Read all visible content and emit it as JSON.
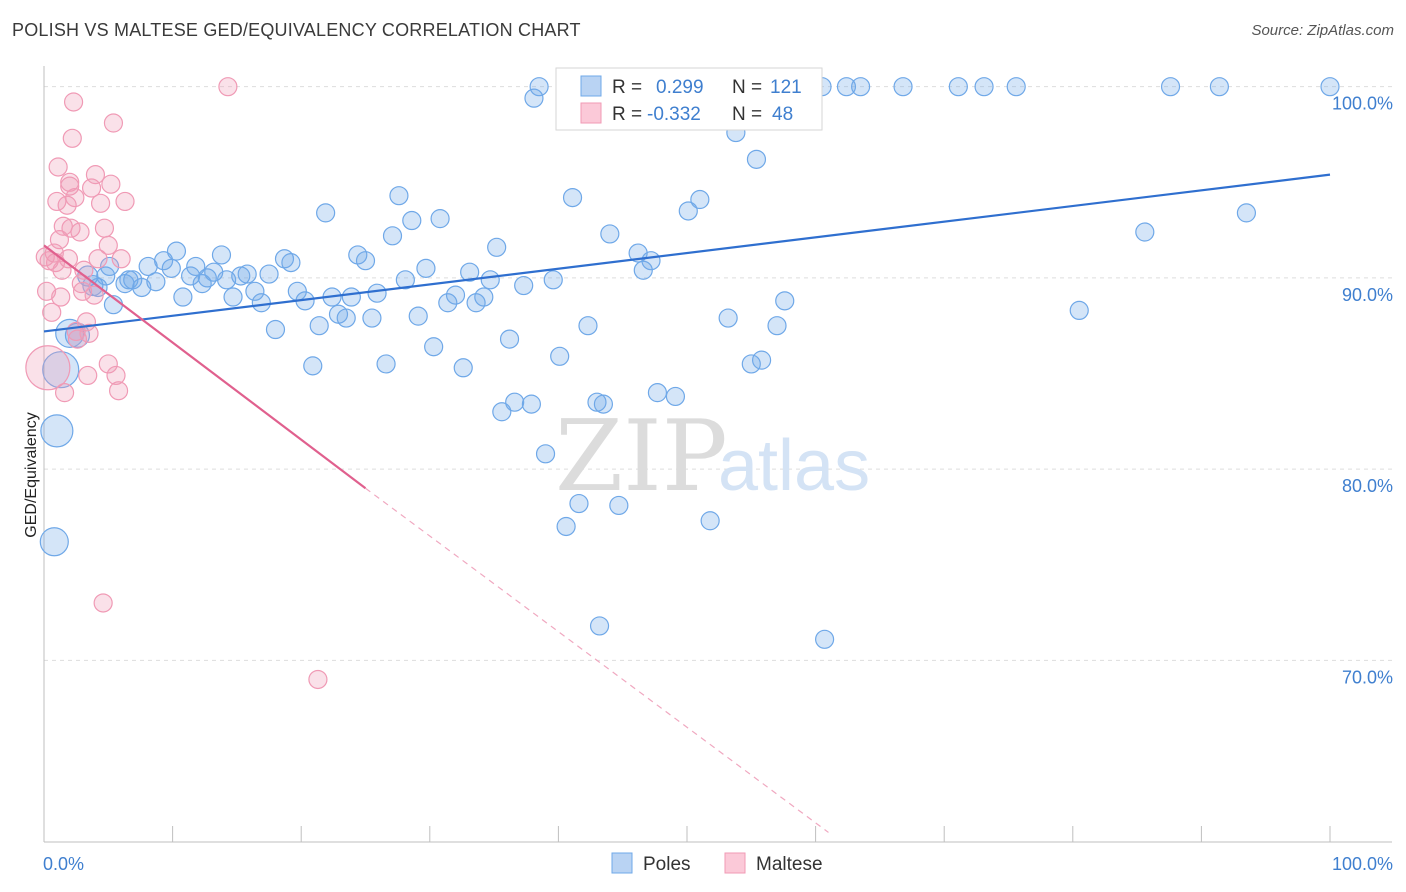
{
  "title": "POLISH VS MALTESE GED/EQUIVALENCY CORRELATION CHART",
  "source": "Source: ZipAtlas.com",
  "watermark": {
    "zip": "ZIP",
    "atlas": "atlas"
  },
  "colors": {
    "poles": "#6fa8e8",
    "poles_line": "#2f6fcf",
    "maltese": "#f09ab5",
    "maltese_line": "#e0608e",
    "tick": "#3f7fcf"
  },
  "chart_data": {
    "type": "scatter",
    "title": "POLISH VS MALTESE GED/EQUIVALENCY CORRELATION CHART",
    "xlabel": "",
    "ylabel": "GED/Equivalency",
    "xlim": [
      0,
      100
    ],
    "ylim": [
      60.5,
      101.5
    ],
    "x_tick_labels": [
      "0.0%",
      "100.0%"
    ],
    "y_ticks": [
      100,
      90,
      80,
      70
    ],
    "y_tick_labels": [
      "100.0%",
      "90.0%",
      "80.0%",
      "70.0%"
    ],
    "grid": true,
    "legend_position": "top-center",
    "stats": [
      {
        "r_label": "R =",
        "r": "0.299",
        "n_label": "N =",
        "n": "121"
      },
      {
        "r_label": "R =",
        "r": "-0.332",
        "n_label": "N =",
        "n": "48"
      }
    ],
    "series": [
      {
        "name": "Poles",
        "trend": {
          "x": [
            0,
            100
          ],
          "y": [
            87.2,
            95.4
          ],
          "dashed": false
        },
        "points": [
          [
            0.8,
            76.2,
            14
          ],
          [
            1.0,
            82.0,
            16
          ],
          [
            1.3,
            85.2,
            18
          ],
          [
            2.0,
            87.1,
            14
          ],
          [
            2.6,
            87.0,
            12
          ],
          [
            3.4,
            90.1,
            10
          ],
          [
            3.8,
            89.6,
            10
          ],
          [
            4.2,
            89.5,
            9
          ],
          [
            4.8,
            90.1,
            9
          ],
          [
            5.1,
            90.6,
            9
          ],
          [
            5.4,
            88.6,
            9
          ],
          [
            6.3,
            89.7,
            9
          ],
          [
            6.6,
            89.9,
            9
          ],
          [
            6.9,
            89.9,
            9
          ],
          [
            7.6,
            89.5,
            9
          ],
          [
            8.1,
            90.6,
            9
          ],
          [
            8.7,
            89.8,
            9
          ],
          [
            9.3,
            90.9,
            9
          ],
          [
            9.9,
            90.5,
            9
          ],
          [
            10.3,
            91.4,
            9
          ],
          [
            10.8,
            89.0,
            9
          ],
          [
            11.4,
            90.1,
            9
          ],
          [
            11.8,
            90.6,
            9
          ],
          [
            12.3,
            89.7,
            9
          ],
          [
            12.7,
            90.0,
            9
          ],
          [
            13.2,
            90.3,
            9
          ],
          [
            13.8,
            91.2,
            9
          ],
          [
            14.2,
            89.9,
            9
          ],
          [
            14.7,
            89.0,
            9
          ],
          [
            15.3,
            90.1,
            9
          ],
          [
            15.8,
            90.2,
            9
          ],
          [
            16.4,
            89.3,
            9
          ],
          [
            16.9,
            88.7,
            9
          ],
          [
            17.5,
            90.2,
            9
          ],
          [
            18.0,
            87.3,
            9
          ],
          [
            18.7,
            91.0,
            9
          ],
          [
            19.2,
            90.8,
            9
          ],
          [
            19.7,
            89.3,
            9
          ],
          [
            20.3,
            88.8,
            9
          ],
          [
            20.9,
            85.4,
            9
          ],
          [
            21.4,
            87.5,
            9
          ],
          [
            21.9,
            93.4,
            9
          ],
          [
            22.4,
            89.0,
            9
          ],
          [
            22.9,
            88.1,
            9
          ],
          [
            23.5,
            87.9,
            9
          ],
          [
            23.9,
            89.0,
            9
          ],
          [
            24.4,
            91.2,
            9
          ],
          [
            25.0,
            90.9,
            9
          ],
          [
            25.5,
            87.9,
            9
          ],
          [
            25.9,
            89.2,
            9
          ],
          [
            26.6,
            85.5,
            9
          ],
          [
            27.1,
            92.2,
            9
          ],
          [
            27.6,
            94.3,
            9
          ],
          [
            28.1,
            89.9,
            9
          ],
          [
            28.6,
            93.0,
            9
          ],
          [
            29.1,
            88.0,
            9
          ],
          [
            29.7,
            90.5,
            9
          ],
          [
            30.3,
            86.4,
            9
          ],
          [
            30.8,
            93.1,
            9
          ],
          [
            31.4,
            88.7,
            9
          ],
          [
            32.0,
            89.1,
            9
          ],
          [
            32.6,
            85.3,
            9
          ],
          [
            33.1,
            90.3,
            9
          ],
          [
            33.6,
            88.7,
            9
          ],
          [
            34.2,
            89.0,
            9
          ],
          [
            34.7,
            89.9,
            9
          ],
          [
            35.2,
            91.6,
            9
          ],
          [
            35.6,
            83.0,
            9
          ],
          [
            36.2,
            86.8,
            9
          ],
          [
            36.6,
            83.5,
            9
          ],
          [
            37.3,
            89.6,
            9
          ],
          [
            37.9,
            83.4,
            9
          ],
          [
            38.5,
            100.0,
            9
          ],
          [
            39.0,
            80.8,
            9
          ],
          [
            39.6,
            89.9,
            9
          ],
          [
            40.1,
            85.9,
            9
          ],
          [
            40.6,
            77.0,
            9
          ],
          [
            41.1,
            94.2,
            9
          ],
          [
            41.6,
            78.2,
            9
          ],
          [
            42.3,
            87.5,
            9
          ],
          [
            43.0,
            83.5,
            9
          ],
          [
            43.5,
            83.4,
            9
          ],
          [
            44.0,
            92.3,
            9
          ],
          [
            44.7,
            78.1,
            9
          ],
          [
            45.5,
            100.0,
            9
          ],
          [
            46.2,
            91.3,
            9
          ],
          [
            46.6,
            90.4,
            9
          ],
          [
            47.2,
            90.9,
            9
          ],
          [
            47.7,
            84.0,
            9
          ],
          [
            48.4,
            100.0,
            9
          ],
          [
            49.1,
            83.8,
            9
          ],
          [
            50.1,
            93.5,
            9
          ],
          [
            51.0,
            94.1,
            9
          ],
          [
            51.8,
            77.3,
            9
          ],
          [
            53.2,
            87.9,
            9
          ],
          [
            53.8,
            97.6,
            9
          ],
          [
            55.0,
            85.5,
            9
          ],
          [
            55.8,
            85.7,
            9
          ],
          [
            56.5,
            100.0,
            9
          ],
          [
            57.0,
            87.5,
            9
          ],
          [
            58.2,
            100.0,
            9
          ],
          [
            58.8,
            100.0,
            9
          ],
          [
            60.5,
            100.0,
            9
          ],
          [
            62.4,
            100.0,
            9
          ],
          [
            63.5,
            100.0,
            9
          ],
          [
            66.8,
            100.0,
            9
          ],
          [
            71.1,
            100.0,
            9
          ],
          [
            73.1,
            100.0,
            9
          ],
          [
            75.6,
            100.0,
            9
          ],
          [
            80.5,
            88.3,
            9
          ],
          [
            85.6,
            92.4,
            9
          ],
          [
            87.6,
            100.0,
            9
          ],
          [
            91.4,
            100.0,
            9
          ],
          [
            93.5,
            93.4,
            9
          ],
          [
            100.0,
            100.0,
            9
          ],
          [
            43.2,
            71.8,
            9
          ],
          [
            60.7,
            71.1,
            9
          ],
          [
            49.6,
            98.8,
            9
          ],
          [
            57.6,
            88.8,
            9
          ],
          [
            38.1,
            99.4,
            9
          ],
          [
            55.4,
            96.2,
            9
          ]
        ]
      },
      {
        "name": "Maltese",
        "trend": {
          "x": [
            0,
            25
          ],
          "y": [
            91.7,
            79.0
          ],
          "dashed": false,
          "extension": {
            "x": [
              25,
              61
            ],
            "y": [
              79.0,
              61.0
            ],
            "dashed": true
          }
        },
        "points": [
          [
            0.1,
            91.1,
            9
          ],
          [
            0.2,
            89.3,
            9
          ],
          [
            0.3,
            85.3,
            22
          ],
          [
            0.4,
            90.9,
            9
          ],
          [
            0.6,
            88.2,
            9
          ],
          [
            0.8,
            91.3,
            9
          ],
          [
            0.9,
            90.8,
            9
          ],
          [
            1.0,
            94.0,
            9
          ],
          [
            1.1,
            95.8,
            9
          ],
          [
            1.2,
            92.0,
            9
          ],
          [
            1.3,
            89.0,
            9
          ],
          [
            1.5,
            92.7,
            9
          ],
          [
            1.6,
            84.0,
            9
          ],
          [
            1.8,
            93.8,
            9
          ],
          [
            1.9,
            91.0,
            9
          ],
          [
            2.0,
            94.8,
            9
          ],
          [
            2.1,
            92.6,
            9
          ],
          [
            2.2,
            97.3,
            9
          ],
          [
            2.3,
            99.2,
            9
          ],
          [
            2.4,
            94.2,
            9
          ],
          [
            2.5,
            87.2,
            9
          ],
          [
            2.6,
            86.8,
            9
          ],
          [
            2.8,
            92.4,
            9
          ],
          [
            2.9,
            89.7,
            9
          ],
          [
            3.0,
            89.3,
            9
          ],
          [
            3.1,
            90.4,
            9
          ],
          [
            3.3,
            87.7,
            9
          ],
          [
            3.4,
            84.9,
            9
          ],
          [
            3.5,
            87.1,
            9
          ],
          [
            3.7,
            94.7,
            9
          ],
          [
            3.9,
            89.1,
            9
          ],
          [
            4.0,
            95.4,
            9
          ],
          [
            4.2,
            91.0,
            9
          ],
          [
            4.4,
            93.9,
            9
          ],
          [
            4.7,
            92.6,
            9
          ],
          [
            5.0,
            91.7,
            9
          ],
          [
            5.2,
            94.9,
            9
          ],
          [
            4.6,
            73.0,
            9
          ],
          [
            5.0,
            85.5,
            9
          ],
          [
            5.4,
            98.1,
            9
          ],
          [
            5.6,
            84.9,
            9
          ],
          [
            5.8,
            84.1,
            9
          ],
          [
            6.0,
            91.0,
            9
          ],
          [
            6.3,
            94.0,
            9
          ],
          [
            14.3,
            100.0,
            9
          ],
          [
            21.3,
            69.0,
            9
          ],
          [
            2.0,
            95.0,
            9
          ],
          [
            1.4,
            90.4,
            9
          ]
        ]
      }
    ]
  },
  "bottom_legend": [
    "Poles",
    "Maltese"
  ]
}
